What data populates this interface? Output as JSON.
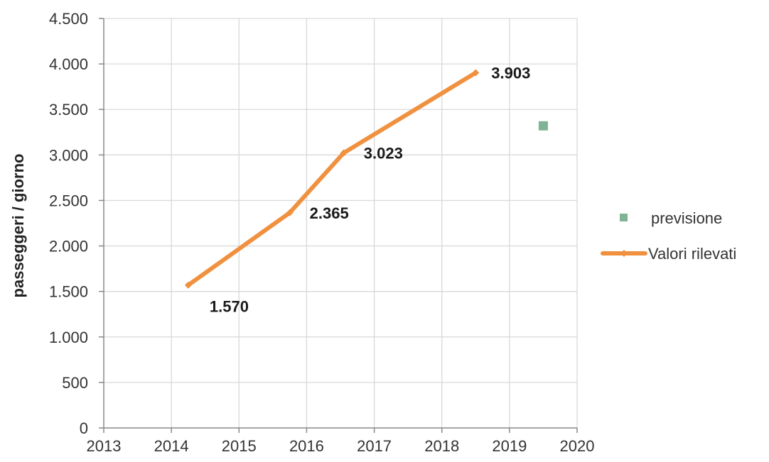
{
  "chart_data": {
    "type": "line",
    "title": "",
    "xlabel": "",
    "ylabel": "passeggeri / giorno",
    "xlim": [
      2013,
      2020
    ],
    "ylim": [
      0,
      4500
    ],
    "x_ticks": [
      2013,
      2014,
      2015,
      2016,
      2017,
      2018,
      2019,
      2020
    ],
    "x_tick_labels": [
      "2013",
      "2014",
      "2015",
      "2016",
      "2017",
      "2018",
      "2019",
      "2020"
    ],
    "y_ticks": [
      0,
      500,
      1000,
      1500,
      2000,
      2500,
      3000,
      3500,
      4000,
      4500
    ],
    "y_tick_labels": [
      "0",
      "500",
      "1.000",
      "1.500",
      "2.000",
      "2.500",
      "3.000",
      "3.500",
      "4.000",
      "4.500"
    ],
    "grid": true,
    "legend_position": "right",
    "series": [
      {
        "name": "Valori rilevati",
        "kind": "line",
        "color": "#F0913F",
        "points": [
          {
            "x": 2014.25,
            "y": 1570,
            "label": "1.570"
          },
          {
            "x": 2015.75,
            "y": 2365,
            "label": "2.365"
          },
          {
            "x": 2016.55,
            "y": 3023,
            "label": "3.023"
          },
          {
            "x": 2018.5,
            "y": 3903,
            "label": "3.903"
          }
        ]
      },
      {
        "name": "previsione",
        "kind": "scatter",
        "color": "#7FB393",
        "points": [
          {
            "x": 2019.5,
            "y": 3320
          }
        ]
      }
    ]
  }
}
